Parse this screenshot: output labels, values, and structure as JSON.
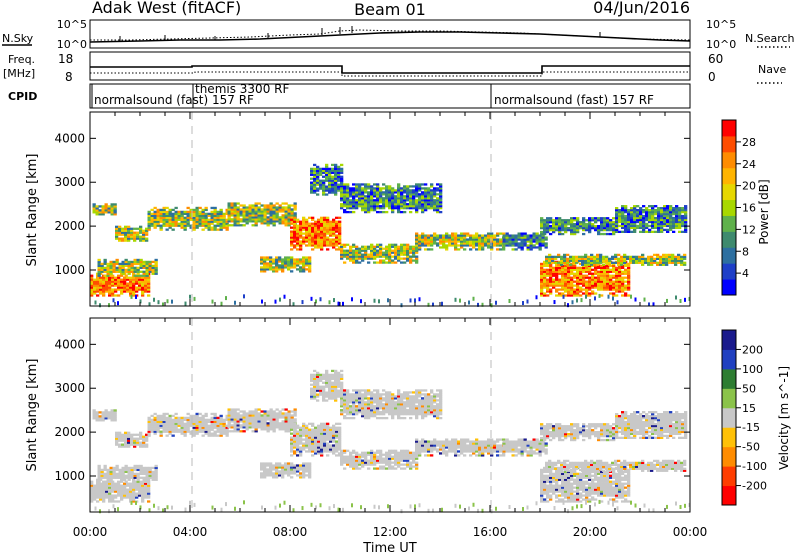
{
  "header": {
    "station": "Adak West (fitACF)",
    "beam": "Beam 01",
    "date": "04/Jun/2016"
  },
  "sky_panel": {
    "left_label": "N.Sky",
    "right_label": "N.Search",
    "top_tick_left": "10^5",
    "bottom_tick_left": "10^0",
    "top_tick_right": "10^5",
    "bottom_tick_right": "10^0"
  },
  "freq_panel": {
    "left_label_line1": "Freq.",
    "left_label_line2": "[MHz]",
    "tick_top_left": "18",
    "tick_bottom_left": "8",
    "tick_top_right": "60",
    "tick_bottom_right": "0",
    "right_label": "Nave"
  },
  "cpid_panel": {
    "label": "CPID",
    "segments": [
      {
        "start_hour": 0,
        "end_hour": 16,
        "text": "normalsound (fast) 157 RF"
      },
      {
        "start_hour": 4,
        "end_hour": 4,
        "text": "themis 3300 RF"
      },
      {
        "start_hour": 16,
        "end_hour": 24,
        "text": "normalsound (fast) 157 RF"
      }
    ]
  },
  "power_colorbar": {
    "label": "Power [dB]",
    "ticks": [
      "28",
      "24",
      "20",
      "16",
      "12",
      "8",
      "4"
    ],
    "colors": [
      "#ff0000",
      "#ff4d00",
      "#ff8c00",
      "#ffb400",
      "#e6d700",
      "#a8d800",
      "#5fb14b",
      "#3e8a6e",
      "#2d6fa0",
      "#1e3fc8",
      "#0000ff"
    ]
  },
  "velocity_colorbar": {
    "label": "Velocity [m s^-1]",
    "ticks": [
      "200",
      "100",
      "50",
      "15",
      "-15",
      "-50",
      "-100",
      "-200"
    ],
    "colors": [
      "#1a1a8c",
      "#2040c0",
      "#2e7d32",
      "#8bc34a",
      "#c8c8c8",
      "#ffc107",
      "#ff8c00",
      "#ff3d00",
      "#ff0000"
    ]
  },
  "chart_data": [
    {
      "type": "heatmap",
      "title": "Power",
      "xlabel": "Time UT",
      "ylabel": "Slant Range [km]",
      "xlim": [
        0,
        24
      ],
      "ylim": [
        180,
        4600
      ],
      "x_ticks": [
        "00:00",
        "04:00",
        "08:00",
        "12:00",
        "16:00",
        "20:00",
        "00:00"
      ],
      "y_ticks": [
        1000,
        2000,
        3000,
        4000
      ],
      "regions": [
        {
          "t0": 0.0,
          "t1": 2.3,
          "r0": 400,
          "r1": 900,
          "level": "high"
        },
        {
          "t0": 0.3,
          "t1": 2.6,
          "r0": 850,
          "r1": 1250,
          "level": "mid"
        },
        {
          "t0": 0.1,
          "t1": 1.0,
          "r0": 2250,
          "r1": 2500,
          "level": "mid"
        },
        {
          "t0": 1.0,
          "t1": 2.3,
          "r0": 1650,
          "r1": 2000,
          "level": "mid"
        },
        {
          "t0": 2.3,
          "t1": 5.5,
          "r0": 1900,
          "r1": 2400,
          "level": "mid"
        },
        {
          "t0": 5.5,
          "t1": 8.2,
          "r0": 2000,
          "r1": 2500,
          "level": "mid"
        },
        {
          "t0": 8.0,
          "t1": 10.0,
          "r0": 1450,
          "r1": 2200,
          "level": "high"
        },
        {
          "t0": 6.8,
          "t1": 8.8,
          "r0": 950,
          "r1": 1300,
          "level": "mid"
        },
        {
          "t0": 8.8,
          "t1": 10.0,
          "r0": 2700,
          "r1": 3400,
          "level": "low"
        },
        {
          "t0": 10.0,
          "t1": 13.0,
          "r0": 1150,
          "r1": 1600,
          "level": "mid"
        },
        {
          "t0": 13.0,
          "t1": 16.5,
          "r0": 1450,
          "r1": 1850,
          "level": "mid"
        },
        {
          "t0": 10.0,
          "t1": 14.0,
          "r0": 2300,
          "r1": 2950,
          "level": "low"
        },
        {
          "t0": 16.5,
          "t1": 18.2,
          "r0": 1450,
          "r1": 1850,
          "level": "low"
        },
        {
          "t0": 18.0,
          "t1": 21.5,
          "r0": 400,
          "r1": 1200,
          "level": "high"
        },
        {
          "t0": 18.2,
          "t1": 23.8,
          "r0": 1100,
          "r1": 1350,
          "level": "mid"
        },
        {
          "t0": 18.0,
          "t1": 21.0,
          "r0": 1800,
          "r1": 2200,
          "level": "low"
        },
        {
          "t0": 21.0,
          "t1": 23.8,
          "r0": 1850,
          "r1": 2450,
          "level": "low"
        }
      ]
    },
    {
      "type": "heatmap",
      "title": "Velocity",
      "xlabel": "Time UT",
      "ylabel": "Slant Range [km]",
      "xlim": [
        0,
        24
      ],
      "ylim": [
        180,
        4600
      ],
      "x_ticks": [
        "00:00",
        "04:00",
        "08:00",
        "12:00",
        "16:00",
        "20:00",
        "00:00"
      ],
      "y_ticks": [
        1000,
        2000,
        3000,
        4000
      ],
      "dominant_bin": "-15 to 15 (grey)"
    }
  ]
}
